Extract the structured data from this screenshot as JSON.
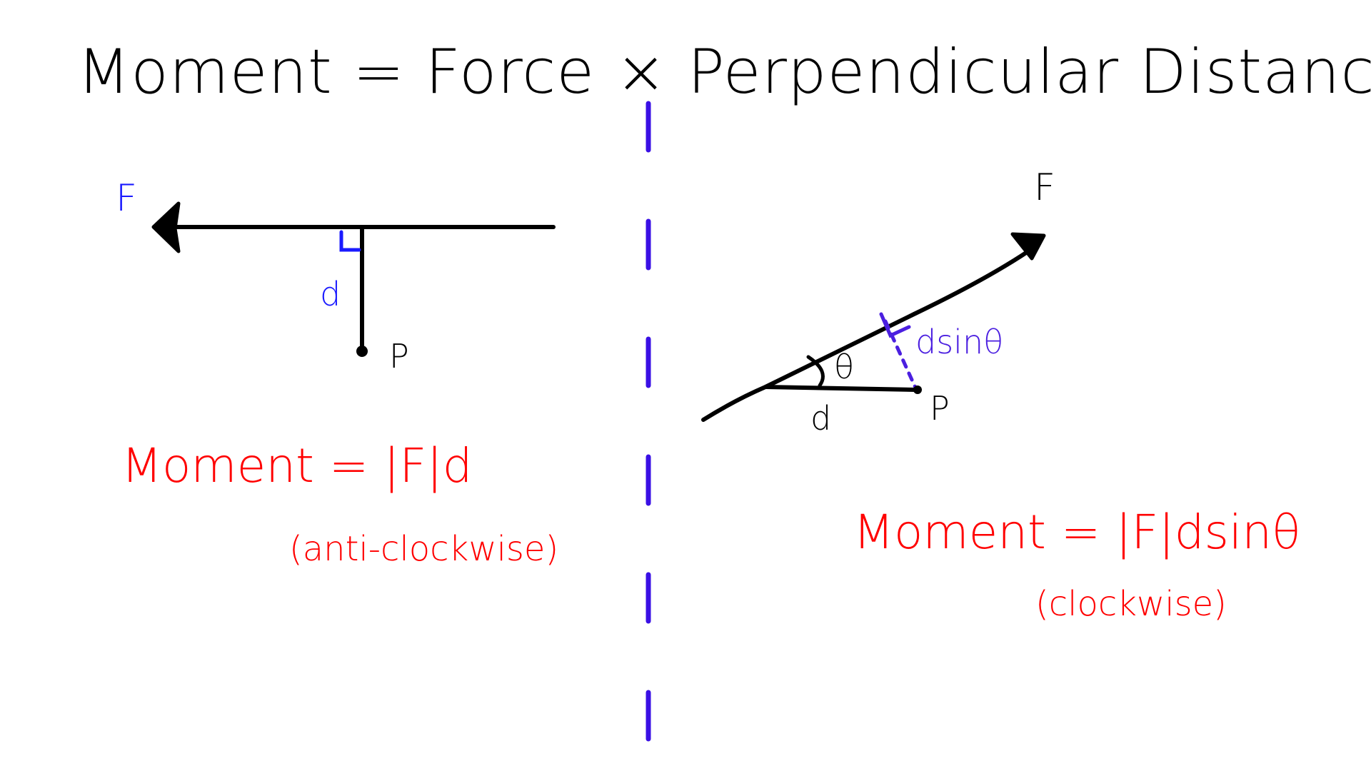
{
  "title": "Moment = Force × Perpendicular Distance",
  "colors": {
    "ink": "#000000",
    "blue": "#1a1aff",
    "purple": "#4b1fe0",
    "red": "#ff0000",
    "divider": "#3a10e5"
  },
  "left_diagram": {
    "force_label": "F",
    "distance_label": "d",
    "point_label": "P",
    "formula": "Moment = |F|d",
    "direction": "(anti-clockwise)"
  },
  "right_diagram": {
    "force_label": "F",
    "angle_label": "θ",
    "distance_label": "d",
    "perp_label": "dsinθ",
    "point_label": "P",
    "formula": "Moment = |F|dsinθ",
    "direction": "(clockwise)"
  }
}
